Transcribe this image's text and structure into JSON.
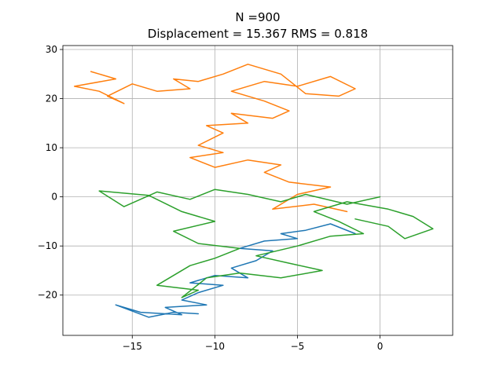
{
  "chart_data": {
    "type": "line",
    "title_line1": "N =900",
    "title_line2": "Displacement = 15.367 RMS = 0.818",
    "xlabel": "",
    "ylabel": "",
    "xlim": [
      -19.2,
      4.4
    ],
    "ylim": [
      -28.2,
      30.8
    ],
    "xticks": [
      -15,
      -10,
      -5,
      0
    ],
    "yticks": [
      -20,
      -10,
      0,
      10,
      20,
      30
    ],
    "grid": true,
    "series": [
      {
        "color": "#1f77b4",
        "points": [
          [
            -1.5,
            -7.5
          ],
          [
            -3.0,
            -5.5
          ],
          [
            -4.5,
            -6.8
          ],
          [
            -6.0,
            -7.5
          ],
          [
            -5.0,
            -8.5
          ],
          [
            -7.0,
            -9.0
          ],
          [
            -8.5,
            -10.5
          ],
          [
            -6.5,
            -11.0
          ],
          [
            -7.5,
            -13.0
          ],
          [
            -9.0,
            -14.5
          ],
          [
            -8.0,
            -16.5
          ],
          [
            -10.0,
            -16.0
          ],
          [
            -11.5,
            -17.5
          ],
          [
            -9.5,
            -18.0
          ],
          [
            -11.0,
            -19.5
          ],
          [
            -12.0,
            -21.0
          ],
          [
            -10.5,
            -22.0
          ],
          [
            -13.0,
            -22.5
          ],
          [
            -12.0,
            -24.0
          ],
          [
            -14.5,
            -23.5
          ],
          [
            -16.0,
            -22.0
          ],
          [
            -14.0,
            -24.5
          ],
          [
            -12.5,
            -23.5
          ],
          [
            -11.0,
            -23.8
          ]
        ]
      },
      {
        "color": "#ff7f0e",
        "points": [
          [
            -2.0,
            -3.0
          ],
          [
            -4.0,
            -1.5
          ],
          [
            -6.5,
            -2.5
          ],
          [
            -5.0,
            0.5
          ],
          [
            -3.0,
            2.0
          ],
          [
            -5.5,
            3.0
          ],
          [
            -7.0,
            5.0
          ],
          [
            -6.0,
            6.5
          ],
          [
            -8.0,
            7.5
          ],
          [
            -10.0,
            6.0
          ],
          [
            -11.5,
            8.0
          ],
          [
            -9.5,
            9.0
          ],
          [
            -11.0,
            10.5
          ],
          [
            -9.5,
            13.0
          ],
          [
            -10.5,
            14.5
          ],
          [
            -8.0,
            15.0
          ],
          [
            -9.0,
            17.0
          ],
          [
            -6.5,
            16.0
          ],
          [
            -5.5,
            17.5
          ],
          [
            -7.0,
            19.5
          ],
          [
            -9.0,
            21.5
          ],
          [
            -7.0,
            23.5
          ],
          [
            -5.0,
            22.5
          ],
          [
            -3.0,
            24.5
          ],
          [
            -1.5,
            22.0
          ],
          [
            -2.5,
            20.5
          ],
          [
            -4.5,
            21.0
          ],
          [
            -6.0,
            25.0
          ],
          [
            -8.0,
            27.0
          ],
          [
            -9.5,
            25.0
          ],
          [
            -11.0,
            23.5
          ],
          [
            -12.5,
            24.0
          ],
          [
            -11.5,
            22.0
          ],
          [
            -13.5,
            21.5
          ],
          [
            -15.0,
            23.0
          ],
          [
            -16.5,
            20.5
          ],
          [
            -15.5,
            19.0
          ],
          [
            -17.0,
            21.5
          ],
          [
            -18.5,
            22.5
          ],
          [
            -16.0,
            24.0
          ],
          [
            -17.5,
            25.5
          ]
        ]
      },
      {
        "color": "#2ca02c",
        "points": [
          [
            0.0,
            0.0
          ],
          [
            -2.0,
            -1.5
          ],
          [
            -4.5,
            0.5
          ],
          [
            -6.0,
            -1.0
          ],
          [
            -8.0,
            0.5
          ],
          [
            -10.0,
            1.5
          ],
          [
            -11.5,
            -0.5
          ],
          [
            -13.5,
            1.0
          ],
          [
            -15.5,
            -2.0
          ],
          [
            -17.0,
            1.2
          ],
          [
            -14.0,
            0.3
          ],
          [
            -12.0,
            -3.0
          ],
          [
            -10.0,
            -5.0
          ],
          [
            -12.5,
            -7.0
          ],
          [
            -11.0,
            -9.5
          ],
          [
            -8.5,
            -10.5
          ],
          [
            -10.0,
            -12.5
          ],
          [
            -11.5,
            -14.0
          ],
          [
            -12.5,
            -16.0
          ],
          [
            -13.5,
            -18.0
          ],
          [
            -11.0,
            -19.0
          ],
          [
            -12.0,
            -20.5
          ],
          [
            -10.5,
            -16.5
          ],
          [
            -8.5,
            -15.5
          ],
          [
            -6.0,
            -16.5
          ],
          [
            -3.5,
            -15.0
          ],
          [
            -5.5,
            -13.5
          ],
          [
            -7.5,
            -12.0
          ],
          [
            -5.0,
            -10.0
          ],
          [
            -3.0,
            -8.0
          ],
          [
            -1.0,
            -7.5
          ],
          [
            -2.5,
            -5.0
          ],
          [
            -4.0,
            -3.0
          ],
          [
            -2.0,
            -1.0
          ],
          [
            0.5,
            -2.5
          ],
          [
            2.0,
            -4.0
          ],
          [
            3.2,
            -6.5
          ],
          [
            1.5,
            -8.5
          ],
          [
            0.5,
            -6.0
          ],
          [
            -1.5,
            -4.5
          ]
        ]
      }
    ]
  }
}
